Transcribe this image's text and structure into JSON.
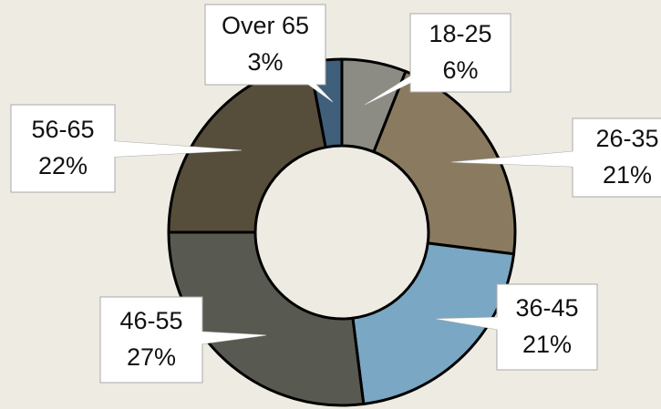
{
  "chart_data": {
    "type": "donut",
    "categories": [
      "18-25",
      "26-35",
      "36-45",
      "46-55",
      "56-65",
      "Over 65"
    ],
    "values": [
      6,
      21,
      21,
      27,
      22,
      3
    ],
    "value_labels": [
      "6%",
      "21%",
      "21%",
      "27%",
      "22%",
      "3%"
    ],
    "colors": [
      "#8d8c84",
      "#8a7b60",
      "#7aa7c3",
      "#585a52",
      "#564d3b",
      "#3f5f7b"
    ]
  }
}
